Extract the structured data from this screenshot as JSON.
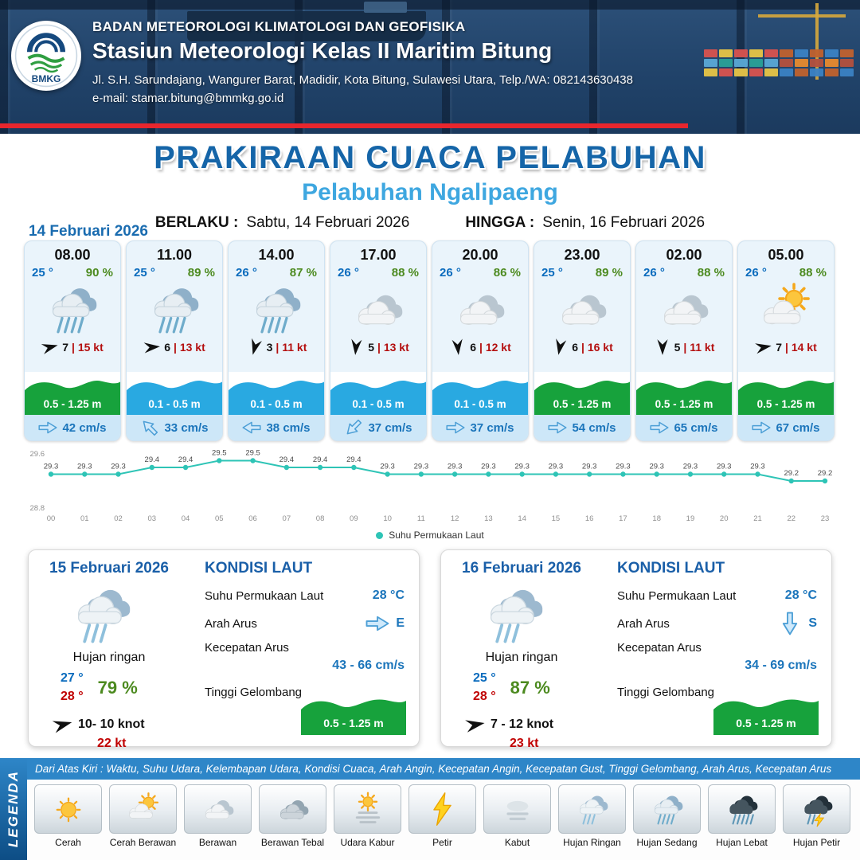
{
  "header": {
    "agency": "BADAN METEOROLOGI KLIMATOLOGI DAN GEOFISIKA",
    "station": "Stasiun Meteorologi Kelas II Maritim Bitung",
    "address": "Jl. S.H. Sarundajang, Wangurer Barat, Madidir, Kota Bitung, Sulawesi Utara, Telp./WA: 082143630438",
    "email": "e-mail: stamar.bitung@bmmkg.go.id",
    "logo_text": "BMKG"
  },
  "title": {
    "main": "PRAKIRAAN CUACA PELABUHAN",
    "subtitle": "Pelabuhan Ngalipaeng",
    "valid_label": "BERLAKU :",
    "valid_value": "Sabtu, 14 Februari 2026",
    "until_label": "HINGGA :",
    "until_value": "Senin, 16 Februari 2026"
  },
  "colors": {
    "accent": "#1b75bb",
    "wave_green": "#17a23c",
    "wave_blue": "#29a9e1",
    "temp_blue": "#0a6bbd",
    "humidity_green": "#4c8a1f",
    "gust_red": "#b40f0f"
  },
  "day1": {
    "date": "14 Februari 2026",
    "cards": [
      {
        "time": "08.00",
        "temp": "25 °",
        "humidity": "90 %",
        "icon": "hujan-sedang",
        "wind_speed": "7",
        "wind_gust": "| 15 kt",
        "wind_deg": -15,
        "wave": "0.5 - 1.25 m",
        "wave_color": "green",
        "current": "42 cm/s",
        "current_deg": 0
      },
      {
        "time": "11.00",
        "temp": "25 °",
        "humidity": "89 %",
        "icon": "hujan-sedang",
        "wind_speed": "6",
        "wind_gust": "| 13 kt",
        "wind_deg": -5,
        "wave": "0.1 - 0.5 m",
        "wave_color": "blue",
        "current": "33 cm/s",
        "current_deg": -135
      },
      {
        "time": "14.00",
        "temp": "26 °",
        "humidity": "87 %",
        "icon": "hujan-sedang",
        "wind_speed": "3",
        "wind_gust": "| 11 kt",
        "wind_deg": 105,
        "wave": "0.1 - 0.5 m",
        "wave_color": "blue",
        "current": "38 cm/s",
        "current_deg": 180
      },
      {
        "time": "17.00",
        "temp": "26 °",
        "humidity": "88 %",
        "icon": "berawan",
        "wind_speed": "5",
        "wind_gust": "| 13 kt",
        "wind_deg": 95,
        "wave": "0.1 - 0.5 m",
        "wave_color": "blue",
        "current": "37 cm/s",
        "current_deg": 135
      },
      {
        "time": "20.00",
        "temp": "26 °",
        "humidity": "86 %",
        "icon": "berawan",
        "wind_speed": "6",
        "wind_gust": "| 12 kt",
        "wind_deg": 85,
        "wave": "0.1 - 0.5 m",
        "wave_color": "blue",
        "current": "37 cm/s",
        "current_deg": 0
      },
      {
        "time": "23.00",
        "temp": "25 °",
        "humidity": "89 %",
        "icon": "berawan",
        "wind_speed": "6",
        "wind_gust": "| 16 kt",
        "wind_deg": 100,
        "wave": "0.5 - 1.25 m",
        "wave_color": "green",
        "current": "54 cm/s",
        "current_deg": 0
      },
      {
        "time": "02.00",
        "temp": "26 °",
        "humidity": "88 %",
        "icon": "berawan",
        "wind_speed": "5",
        "wind_gust": "| 11 kt",
        "wind_deg": 90,
        "wave": "0.5 - 1.25 m",
        "wave_color": "green",
        "current": "65 cm/s",
        "current_deg": 0
      },
      {
        "time": "05.00",
        "temp": "26 °",
        "humidity": "88 %",
        "icon": "cerah-berawan",
        "wind_speed": "7",
        "wind_gust": "| 14 kt",
        "wind_deg": -10,
        "wave": "0.5 - 1.25 m",
        "wave_color": "green",
        "current": "67 cm/s",
        "current_deg": 0
      }
    ]
  },
  "chart_data": {
    "type": "line",
    "series_name": "Suhu Permukaan Laut",
    "x": [
      "00",
      "01",
      "02",
      "03",
      "04",
      "05",
      "06",
      "07",
      "08",
      "09",
      "10",
      "11",
      "12",
      "13",
      "14",
      "15",
      "16",
      "17",
      "18",
      "19",
      "20",
      "21",
      "22",
      "23"
    ],
    "values": [
      29.3,
      29.3,
      29.3,
      29.4,
      29.4,
      29.5,
      29.5,
      29.4,
      29.4,
      29.4,
      29.3,
      29.3,
      29.3,
      29.3,
      29.3,
      29.3,
      29.3,
      29.3,
      29.3,
      29.3,
      29.3,
      29.3,
      29.2,
      29.2
    ],
    "ylim": [
      28.8,
      29.6
    ],
    "yticks": [
      29.6,
      28.8
    ],
    "line_color": "#2ec4b6",
    "xlabel": "",
    "ylabel": ""
  },
  "days": [
    {
      "date": "15 Februari 2026",
      "condition": "Hujan ringan",
      "icon": "hujan-ringan",
      "temp_min": "27 °",
      "temp_max": "28 °",
      "humidity": "79 %",
      "wind": "10- 10 knot",
      "gust": "22 kt",
      "wind_deg": -15,
      "sea": {
        "title": "KONDISI LAUT",
        "sst_label": "Suhu Permukaan Laut",
        "sst": "28 °C",
        "current_dir_label": "Arah Arus",
        "current_dir": "E",
        "current_deg": 0,
        "current_speed_label": "Kecepatan Arus",
        "current_speed": "43 - 66 cm/s",
        "wave_label": "Tinggi Gelombang",
        "wave": "0.5 - 1.25 m"
      }
    },
    {
      "date": "16 Februari 2026",
      "condition": "Hujan ringan",
      "icon": "hujan-ringan",
      "temp_min": "25 °",
      "temp_max": "28 °",
      "humidity": "87 %",
      "wind": "7 - 12 knot",
      "gust": "23 kt",
      "wind_deg": -10,
      "sea": {
        "title": "KONDISI LAUT",
        "sst_label": "Suhu Permukaan Laut",
        "sst": "28 °C",
        "current_dir_label": "Arah Arus",
        "current_dir": "S",
        "current_deg": 90,
        "current_speed_label": "Kecepatan Arus",
        "current_speed": "34 - 69 cm/s",
        "wave_label": "Tinggi Gelombang",
        "wave": "0.5 - 1.25 m"
      }
    }
  ],
  "legend": {
    "tab": "LEGENDA",
    "note": "Dari Atas Kiri : Waktu, Suhu Udara, Kelembapan Udara, Kondisi Cuaca, Arah Angin, Kecepatan Angin, Kecepatan Gust, Tinggi Gelombang, Arah Arus, Kecepatan Arus",
    "items": [
      {
        "label": "Cerah",
        "icon": "cerah"
      },
      {
        "label": "Cerah Berawan",
        "icon": "cerah-berawan"
      },
      {
        "label": "Berawan",
        "icon": "berawan"
      },
      {
        "label": "Berawan Tebal",
        "icon": "berawan-tebal"
      },
      {
        "label": "Udara Kabur",
        "icon": "udara-kabur"
      },
      {
        "label": "Petir",
        "icon": "petir"
      },
      {
        "label": "Kabut",
        "icon": "kabut"
      },
      {
        "label": "Hujan Ringan",
        "icon": "hujan-ringan"
      },
      {
        "label": "Hujan Sedang",
        "icon": "hujan-sedang"
      },
      {
        "label": "Hujan Lebat",
        "icon": "hujan-lebat"
      },
      {
        "label": "Hujan Petir",
        "icon": "hujan-petir"
      }
    ]
  }
}
